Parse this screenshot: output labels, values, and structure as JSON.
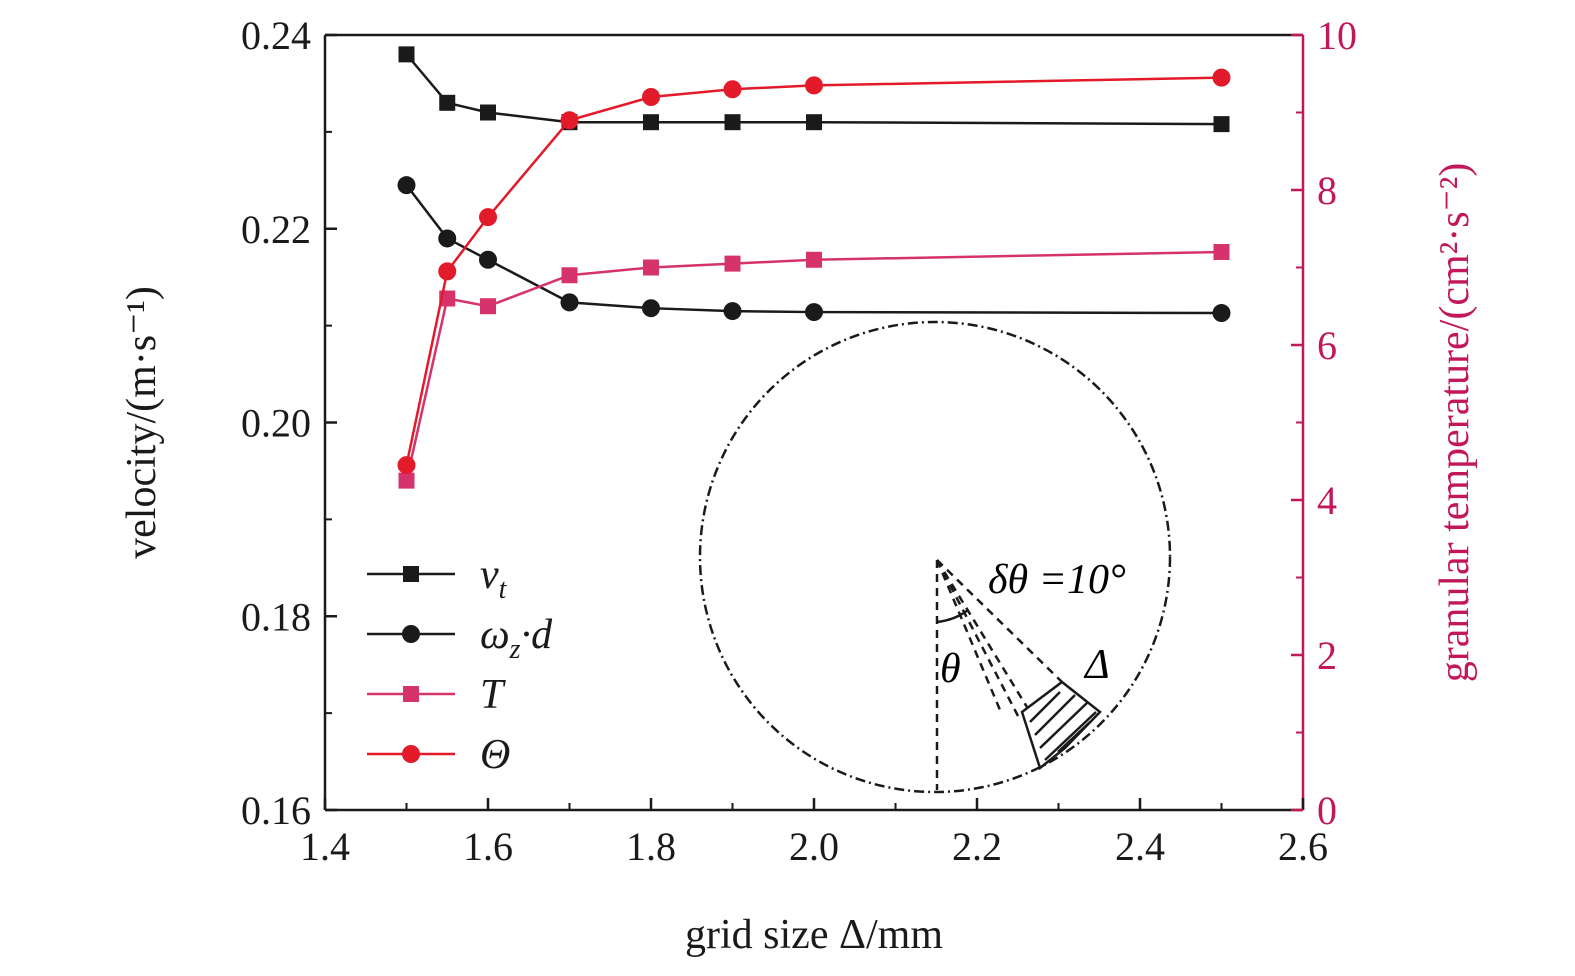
{
  "chart_data": {
    "type": "line",
    "xlabel": "grid size Δ/mm",
    "ylabel": "velocity/(m·s⁻¹)",
    "y2label": "granular temperature/(cm²·s⁻²)",
    "xlim": [
      1.4,
      2.6
    ],
    "ylim": [
      0.16,
      0.24
    ],
    "y2lim": [
      0,
      10
    ],
    "x_ticks": [
      "1.4",
      "1.6",
      "1.8",
      "2.0",
      "2.2",
      "2.4",
      "2.6"
    ],
    "y_ticks": [
      "0.16",
      "0.18",
      "0.20",
      "0.22",
      "0.24"
    ],
    "y2_ticks": [
      "0",
      "2",
      "4",
      "6",
      "8",
      "10"
    ],
    "grid": false,
    "legend_position": "bottom-left",
    "x": [
      1.5,
      1.55,
      1.6,
      1.7,
      1.8,
      1.9,
      2.0,
      2.5
    ],
    "series": [
      {
        "name": "v",
        "subscript": "t",
        "axis": "left",
        "marker": "square",
        "color": "#1a1a1a",
        "values": [
          0.238,
          0.233,
          0.232,
          0.231,
          0.231,
          0.231,
          0.231,
          0.2308
        ]
      },
      {
        "name": "ω",
        "subscript": "z",
        "suffix": "·d",
        "axis": "left",
        "marker": "circle",
        "color": "#1a1a1a",
        "values": [
          0.2245,
          0.219,
          0.2168,
          0.2124,
          0.2118,
          0.2115,
          0.2114,
          0.2113
        ]
      },
      {
        "name": "T",
        "subscript": "",
        "axis": "right",
        "marker": "square",
        "color": "#d6336c",
        "values": [
          4.25,
          6.6,
          6.5,
          6.9,
          7.0,
          7.05,
          7.1,
          7.2
        ]
      },
      {
        "name": "Θ",
        "subscript": "",
        "axis": "right",
        "marker": "circle",
        "color": "#e31a2a",
        "values": [
          4.45,
          6.95,
          7.65,
          8.9,
          9.2,
          9.3,
          9.35,
          9.45
        ]
      }
    ],
    "inset": {
      "angle_label": "δθ =10°",
      "theta_label": "θ",
      "delta_label": "Δ"
    }
  },
  "colors": {
    "black_series": "#1a1a1a",
    "pink_series": "#d6336c",
    "red_series": "#e31a2a",
    "right_axis": "#c2185b"
  }
}
